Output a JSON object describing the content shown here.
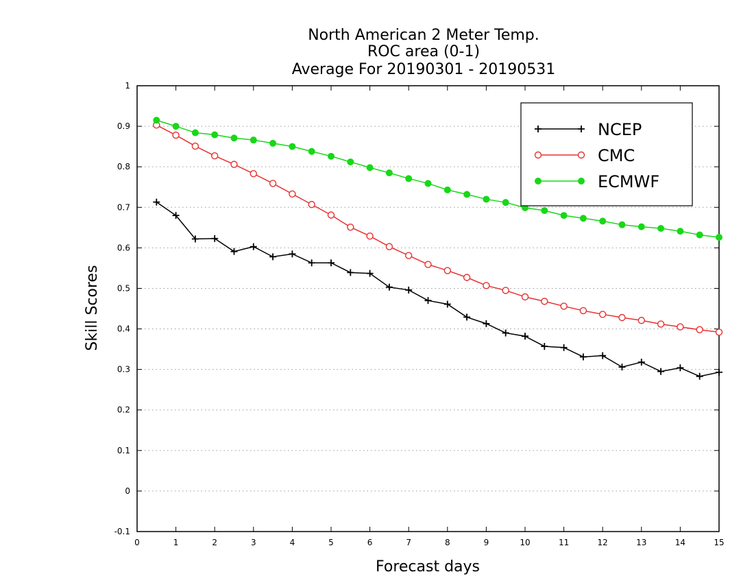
{
  "chart_data": {
    "type": "line",
    "title": [
      "North American 2 Meter Temp.",
      "ROC area (0-1)",
      "Average For 20190301 - 20190531"
    ],
    "xlabel": "Forecast days",
    "ylabel": "Skill Scores",
    "xlim": [
      0,
      15
    ],
    "ylim": [
      -0.1,
      1
    ],
    "xticks": [
      0,
      1,
      2,
      3,
      4,
      5,
      6,
      7,
      8,
      9,
      10,
      11,
      12,
      13,
      14,
      15
    ],
    "yticks": [
      -0.1,
      0,
      0.1,
      0.2,
      0.3,
      0.4,
      0.5,
      0.6,
      0.7,
      0.8,
      0.9,
      1
    ],
    "ytick_labels": [
      "-0.1",
      "0",
      "0.1",
      "0.2",
      "0.3",
      "0.4",
      "0.5",
      "0.6",
      "0.7",
      "0.8",
      "0.9",
      "1"
    ],
    "grid": "horizontal-dotted",
    "legend_position": "top-right",
    "x": [
      0.5,
      1,
      1.5,
      2,
      2.5,
      3,
      3.5,
      4,
      4.5,
      5,
      5.5,
      6,
      6.5,
      7,
      7.5,
      8,
      8.5,
      9,
      9.5,
      10,
      10.5,
      11,
      11.5,
      12,
      12.5,
      13,
      13.5,
      14,
      14.5,
      15
    ],
    "series": [
      {
        "name": "NCEP",
        "color": "#000000",
        "marker": "plus",
        "values": [
          0.713,
          0.68,
          0.622,
          0.623,
          0.591,
          0.603,
          0.578,
          0.585,
          0.563,
          0.563,
          0.539,
          0.537,
          0.503,
          0.496,
          0.47,
          0.461,
          0.429,
          0.413,
          0.39,
          0.382,
          0.357,
          0.354,
          0.331,
          0.334,
          0.306,
          0.318,
          0.295,
          0.304,
          0.283,
          0.293
        ]
      },
      {
        "name": "CMC",
        "color": "#e83030",
        "marker": "open-circle",
        "values": [
          0.903,
          0.878,
          0.851,
          0.827,
          0.806,
          0.783,
          0.759,
          0.733,
          0.707,
          0.681,
          0.651,
          0.629,
          0.603,
          0.581,
          0.559,
          0.544,
          0.527,
          0.507,
          0.495,
          0.479,
          0.468,
          0.456,
          0.445,
          0.436,
          0.428,
          0.421,
          0.412,
          0.405,
          0.398,
          0.392
        ]
      },
      {
        "name": "ECMWF",
        "color": "#18d818",
        "marker": "filled-circle",
        "values": [
          0.915,
          0.9,
          0.884,
          0.879,
          0.871,
          0.866,
          0.858,
          0.85,
          0.838,
          0.826,
          0.812,
          0.798,
          0.785,
          0.771,
          0.759,
          0.743,
          0.732,
          0.72,
          0.712,
          0.699,
          0.692,
          0.68,
          0.673,
          0.666,
          0.657,
          0.652,
          0.648,
          0.641,
          0.632,
          0.626
        ]
      }
    ]
  }
}
